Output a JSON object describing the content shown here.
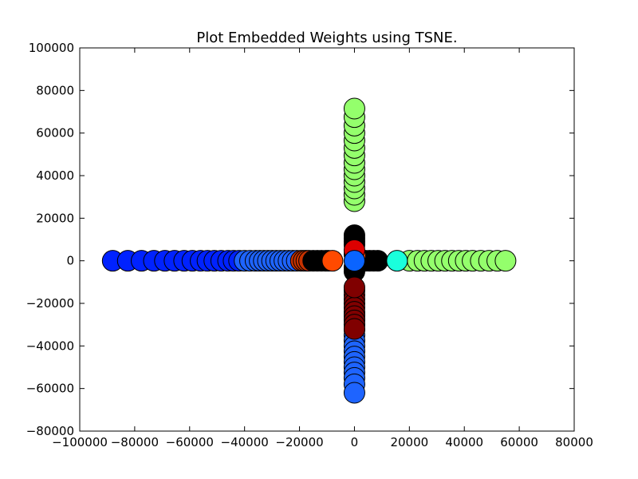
{
  "chart_data": {
    "type": "scatter",
    "title": "Plot Embedded Weights using TSNE.",
    "xlabel": "",
    "ylabel": "",
    "xlim": [
      -100000,
      80000
    ],
    "ylim": [
      -80000,
      100000
    ],
    "xticks": [
      -100000,
      -80000,
      -60000,
      -40000,
      -20000,
      0,
      20000,
      40000,
      60000,
      80000
    ],
    "xtick_labels": [
      "−100000",
      "−80000",
      "−60000",
      "−40000",
      "−20000",
      "0",
      "20000",
      "40000",
      "60000",
      "80000"
    ],
    "yticks": [
      -80000,
      -60000,
      -40000,
      -20000,
      0,
      20000,
      40000,
      60000,
      80000,
      100000
    ],
    "ytick_labels": [
      "−80000",
      "−60000",
      "−40000",
      "−20000",
      "0",
      "20000",
      "40000",
      "60000",
      "80000",
      "100000"
    ],
    "grid": false,
    "marker_edge_color": "#000000",
    "series": [
      {
        "color": "#0022ff",
        "points": [
          [
            -88000,
            0
          ],
          [
            -82500,
            0
          ],
          [
            -77500,
            0
          ],
          [
            -73000,
            0
          ],
          [
            -69000,
            0
          ],
          [
            -65500,
            0
          ],
          [
            -62000,
            0
          ],
          [
            -59000,
            0
          ],
          [
            -56000,
            0
          ],
          [
            -53500,
            0
          ],
          [
            -51000,
            0
          ],
          [
            -48500,
            0
          ],
          [
            -46000,
            0
          ],
          [
            -44000,
            0
          ],
          [
            -42000,
            0
          ]
        ]
      },
      {
        "color": "#1e64ff",
        "points": [
          [
            -40000,
            0
          ],
          [
            -38000,
            0
          ],
          [
            -36000,
            0
          ],
          [
            -34500,
            0
          ],
          [
            -33000,
            0
          ],
          [
            -31500,
            0
          ],
          [
            -30000,
            0
          ],
          [
            -28500,
            0
          ],
          [
            -27000,
            0
          ],
          [
            -25500,
            0
          ],
          [
            -24000,
            0
          ],
          [
            -22500,
            0
          ],
          [
            -21000,
            0
          ]
        ]
      },
      {
        "color": "#c83200",
        "points": [
          [
            -19500,
            0
          ],
          [
            -18500,
            0
          ],
          [
            -17500,
            0
          ],
          [
            -16500,
            0
          ]
        ]
      },
      {
        "color": "#000000",
        "points": [
          [
            -15000,
            0
          ],
          [
            -13500,
            0
          ],
          [
            -12000,
            0
          ],
          [
            -10500,
            0
          ],
          [
            -9500,
            0
          ],
          [
            2500,
            0
          ],
          [
            4000,
            0
          ],
          [
            5500,
            0
          ],
          [
            7000,
            0
          ],
          [
            8500,
            0
          ],
          [
            0,
            12000
          ],
          [
            0,
            10500
          ],
          [
            0,
            9000
          ],
          [
            0,
            7500
          ],
          [
            0,
            3000
          ],
          [
            0,
            -3000
          ],
          [
            0,
            -5000
          ]
        ]
      },
      {
        "color": "#ff4a00",
        "points": [
          [
            -8000,
            0
          ],
          [
            300,
            2500
          ]
        ]
      },
      {
        "color": "#dd0000",
        "points": [
          [
            0,
            5000
          ]
        ]
      },
      {
        "color": "#1e64ff",
        "points": [
          [
            0,
            -25000
          ],
          [
            0,
            -27500
          ],
          [
            0,
            -30000
          ],
          [
            0,
            -32500
          ],
          [
            0,
            -35000
          ],
          [
            0,
            -37500
          ],
          [
            0,
            -40000
          ],
          [
            0,
            -42500
          ],
          [
            0,
            -45000
          ],
          [
            0,
            -47500
          ],
          [
            0,
            -50000
          ],
          [
            0,
            -52500
          ],
          [
            0,
            -55000
          ],
          [
            0,
            -58000
          ],
          [
            0,
            -62000
          ]
        ]
      },
      {
        "color": "#800000",
        "points": [
          [
            0,
            -14000
          ],
          [
            0,
            -16000
          ],
          [
            0,
            -18000
          ],
          [
            0,
            -20000
          ],
          [
            0,
            -22000
          ],
          [
            0,
            -24000
          ],
          [
            0,
            -26000
          ],
          [
            0,
            -28000
          ],
          [
            0,
            -30000
          ],
          [
            0,
            -32000
          ],
          [
            0,
            -12500
          ]
        ]
      },
      {
        "color": "#94ff6c",
        "points": [
          [
            0,
            28000
          ],
          [
            0,
            31000
          ],
          [
            0,
            34000
          ],
          [
            0,
            37000
          ],
          [
            0,
            40000
          ],
          [
            0,
            43000
          ],
          [
            0,
            46000
          ],
          [
            0,
            49500
          ],
          [
            0,
            53000
          ],
          [
            0,
            56500
          ],
          [
            0,
            60000
          ],
          [
            0,
            63500
          ],
          [
            0,
            67500
          ],
          [
            0,
            71500
          ],
          [
            20000,
            0
          ],
          [
            23000,
            0
          ],
          [
            25500,
            0
          ],
          [
            28000,
            0
          ],
          [
            30500,
            0
          ],
          [
            33000,
            0
          ],
          [
            35500,
            0
          ],
          [
            38000,
            0
          ],
          [
            40500,
            0
          ],
          [
            43000,
            0
          ],
          [
            46000,
            0
          ],
          [
            49000,
            0
          ],
          [
            52000,
            0
          ],
          [
            55000,
            0
          ]
        ]
      },
      {
        "color": "#1affdc",
        "points": [
          [
            15500,
            0
          ]
        ]
      },
      {
        "color": "#0a64ff",
        "points": [
          [
            0,
            0
          ]
        ]
      }
    ]
  }
}
